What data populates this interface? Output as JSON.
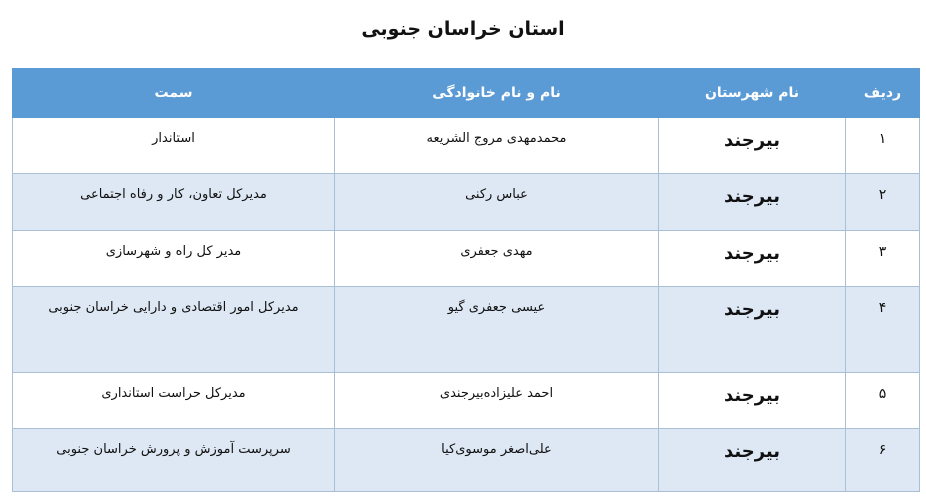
{
  "title": "استان خراسان جنوبی",
  "table": {
    "headers": [
      "ردیف",
      "نام شهرستان",
      "نام و نام خانوادگی",
      "سمت"
    ],
    "rows": [
      {
        "index": "۱",
        "city": "بیرجند",
        "name": "محمدمهدی مروج الشریعه",
        "position": "استاندار"
      },
      {
        "index": "۲",
        "city": "بیرجند",
        "name": "عباس رکنی",
        "position": "مدیرکل تعاون، کار و رفاه اجتماعی"
      },
      {
        "index": "۳",
        "city": "بیرجند",
        "name": "مهدی جعفری",
        "position": "مدیر کل راه و شهرسازی"
      },
      {
        "index": "۴",
        "city": "بیرجند",
        "name": "عیسی جعفری گیو",
        "position": "مدیرکل امور اقتصادی و دارایی خراسان جنوبی"
      },
      {
        "index": "۵",
        "city": "بیرجند",
        "name": "احمد علیزاده‌بیرجندی",
        "position": "مدیرکل حراست استانداری"
      },
      {
        "index": "۶",
        "city": "بیرجند",
        "name": "علی‌اصغر موسوی‌کیا",
        "position": "سرپرست آموزش و پرورش خراسان جنوبی"
      }
    ]
  },
  "colors": {
    "header_bg": "#5b9bd5",
    "alt_row_bg": "#dde8f4"
  }
}
